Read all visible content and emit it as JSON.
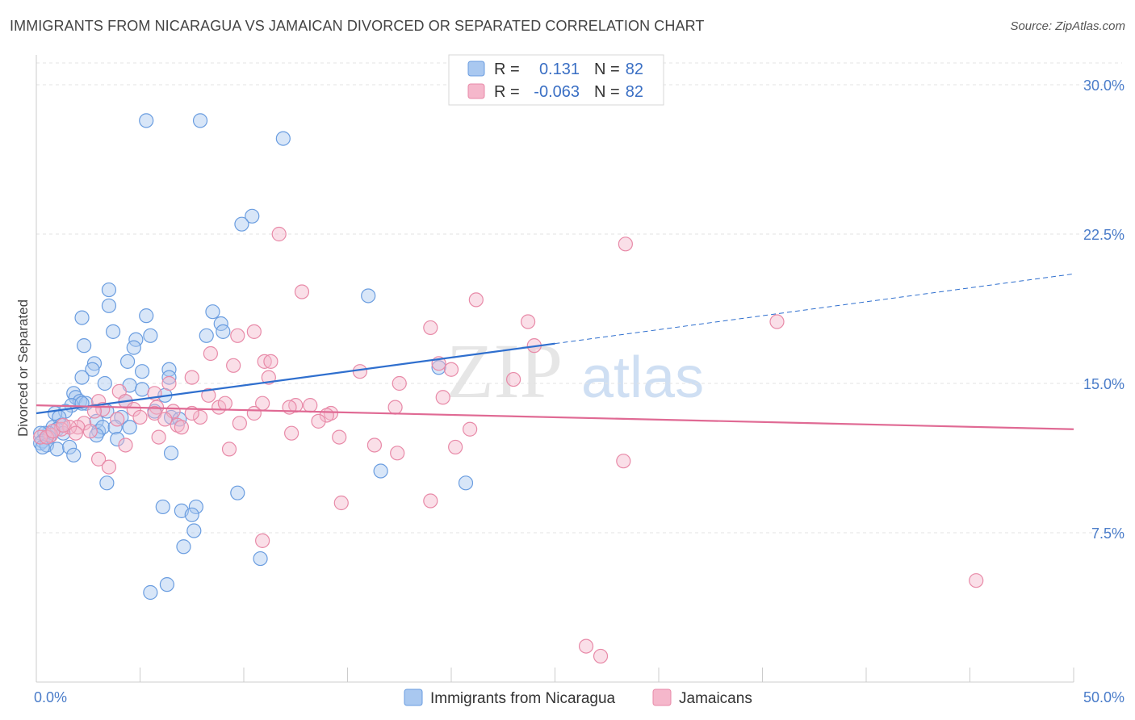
{
  "title": "IMMIGRANTS FROM NICARAGUA VS JAMAICAN DIVORCED OR SEPARATED CORRELATION CHART",
  "source": "Source: ZipAtlas.com",
  "watermark": {
    "zip": "ZIP",
    "atlas": "atlas"
  },
  "legend": {
    "rows": [
      {
        "r_label": "R =",
        "r_value": "0.131",
        "n_label": "N =",
        "n_value": "82",
        "color": "#a9c8f0"
      },
      {
        "r_label": "R =",
        "r_value": "-0.063",
        "n_label": "N =",
        "n_value": "82",
        "color": "#f5b7cb"
      }
    ]
  },
  "bottom_legend": [
    "Immigrants from Nicaragua",
    "Jamaicans"
  ],
  "chart_data": {
    "type": "scatter",
    "title": "IMMIGRANTS FROM NICARAGUA VS JAMAICAN DIVORCED OR SEPARATED CORRELATION CHART",
    "xlabel": "",
    "ylabel": "Divorced or Separated",
    "xlim": [
      0,
      50
    ],
    "ylim": [
      0,
      31.5
    ],
    "x_tick_labels": [
      "0.0%",
      "50.0%"
    ],
    "y_ticks": [
      7.5,
      15.0,
      22.5,
      30.0
    ],
    "y_tick_labels": [
      "7.5%",
      "15.0%",
      "22.5%",
      "30.0%"
    ],
    "grid": true,
    "legend_position": "top-center",
    "series": [
      {
        "name": "Immigrants from Nicaragua",
        "color": "#6a9de0",
        "fill": "#a9c8f0",
        "trend": {
          "x": [
            0,
            25
          ],
          "y": [
            13.5,
            17.0
          ],
          "dashed_to": [
            50,
            20.5
          ],
          "color": "#2f6fce"
        },
        "points": [
          [
            5.3,
            28.2
          ],
          [
            7.9,
            28.2
          ],
          [
            11.9,
            27.3
          ],
          [
            10.4,
            23.4
          ],
          [
            9.9,
            23.0
          ],
          [
            16.0,
            19.4
          ],
          [
            3.5,
            19.7
          ],
          [
            3.5,
            18.9
          ],
          [
            5.3,
            18.4
          ],
          [
            2.2,
            18.3
          ],
          [
            8.5,
            18.6
          ],
          [
            8.9,
            18.0
          ],
          [
            9.0,
            17.6
          ],
          [
            8.2,
            17.4
          ],
          [
            3.7,
            17.6
          ],
          [
            5.5,
            17.4
          ],
          [
            4.8,
            17.2
          ],
          [
            2.3,
            16.9
          ],
          [
            4.7,
            16.8
          ],
          [
            2.8,
            16.0
          ],
          [
            4.4,
            16.1
          ],
          [
            2.7,
            15.7
          ],
          [
            5.1,
            15.6
          ],
          [
            6.4,
            15.7
          ],
          [
            6.4,
            15.3
          ],
          [
            2.2,
            15.3
          ],
          [
            3.3,
            15.0
          ],
          [
            4.5,
            14.9
          ],
          [
            5.1,
            14.7
          ],
          [
            6.2,
            14.4
          ],
          [
            1.8,
            14.5
          ],
          [
            1.9,
            14.3
          ],
          [
            2.1,
            14.1
          ],
          [
            2.4,
            14.0
          ],
          [
            1.7,
            13.9
          ],
          [
            3.4,
            13.6
          ],
          [
            1.4,
            13.6
          ],
          [
            0.9,
            13.5
          ],
          [
            1.1,
            13.3
          ],
          [
            4.3,
            14.1
          ],
          [
            4.1,
            13.3
          ],
          [
            5.7,
            13.6
          ],
          [
            6.5,
            13.3
          ],
          [
            2.9,
            13.1
          ],
          [
            1.2,
            12.9
          ],
          [
            0.8,
            12.8
          ],
          [
            1.0,
            12.7
          ],
          [
            0.6,
            12.5
          ],
          [
            0.4,
            12.5
          ],
          [
            0.2,
            12.5
          ],
          [
            0.6,
            12.3
          ],
          [
            1.3,
            12.5
          ],
          [
            3.0,
            12.6
          ],
          [
            3.2,
            12.8
          ],
          [
            3.8,
            12.8
          ],
          [
            4.5,
            12.8
          ],
          [
            2.9,
            12.4
          ],
          [
            3.9,
            12.2
          ],
          [
            0.3,
            12.1
          ],
          [
            0.2,
            12.0
          ],
          [
            0.5,
            11.9
          ],
          [
            0.3,
            11.8
          ],
          [
            1.0,
            11.7
          ],
          [
            1.6,
            11.8
          ],
          [
            1.8,
            11.4
          ],
          [
            6.5,
            11.5
          ],
          [
            16.6,
            10.6
          ],
          [
            3.4,
            10.0
          ],
          [
            20.7,
            10.0
          ],
          [
            9.7,
            9.5
          ],
          [
            6.1,
            8.8
          ],
          [
            7.7,
            8.8
          ],
          [
            7.0,
            8.6
          ],
          [
            7.5,
            8.4
          ],
          [
            7.6,
            7.6
          ],
          [
            7.1,
            6.8
          ],
          [
            10.8,
            6.2
          ],
          [
            6.3,
            4.9
          ],
          [
            5.5,
            4.5
          ],
          [
            19.4,
            15.8
          ],
          [
            6.9,
            13.2
          ],
          [
            2.2,
            14.0
          ]
        ]
      },
      {
        "name": "Jamaicans",
        "color": "#e88aa8",
        "fill": "#f5b7cb",
        "trend": {
          "x": [
            0,
            50
          ],
          "y": [
            13.9,
            12.7
          ],
          "color": "#e06a94"
        },
        "points": [
          [
            11.7,
            22.5
          ],
          [
            28.4,
            22.0
          ],
          [
            12.8,
            19.6
          ],
          [
            21.2,
            19.2
          ],
          [
            35.7,
            18.1
          ],
          [
            23.7,
            18.1
          ],
          [
            19.0,
            17.8
          ],
          [
            10.5,
            17.6
          ],
          [
            9.7,
            17.4
          ],
          [
            24.0,
            16.9
          ],
          [
            8.4,
            16.5
          ],
          [
            11.0,
            16.1
          ],
          [
            11.3,
            16.1
          ],
          [
            9.5,
            15.9
          ],
          [
            19.4,
            16.0
          ],
          [
            20.0,
            15.7
          ],
          [
            15.6,
            15.6
          ],
          [
            7.5,
            15.3
          ],
          [
            11.2,
            15.3
          ],
          [
            23.0,
            15.2
          ],
          [
            6.4,
            15.0
          ],
          [
            17.5,
            15.0
          ],
          [
            4.0,
            14.6
          ],
          [
            5.7,
            14.5
          ],
          [
            8.3,
            14.4
          ],
          [
            19.6,
            14.3
          ],
          [
            3.0,
            14.1
          ],
          [
            4.3,
            14.1
          ],
          [
            10.9,
            14.0
          ],
          [
            12.5,
            13.9
          ],
          [
            13.2,
            13.9
          ],
          [
            12.2,
            13.8
          ],
          [
            8.8,
            13.8
          ],
          [
            17.3,
            13.8
          ],
          [
            5.8,
            13.8
          ],
          [
            4.7,
            13.7
          ],
          [
            3.2,
            13.7
          ],
          [
            2.8,
            13.6
          ],
          [
            10.5,
            13.5
          ],
          [
            14.2,
            13.5
          ],
          [
            5.7,
            13.5
          ],
          [
            6.6,
            13.6
          ],
          [
            7.9,
            13.3
          ],
          [
            7.5,
            13.5
          ],
          [
            14.0,
            13.4
          ],
          [
            5.0,
            13.3
          ],
          [
            6.2,
            13.2
          ],
          [
            9.8,
            13.0
          ],
          [
            2.3,
            13.0
          ],
          [
            2.0,
            12.8
          ],
          [
            1.6,
            12.8
          ],
          [
            6.8,
            12.9
          ],
          [
            1.2,
            12.7
          ],
          [
            20.9,
            12.7
          ],
          [
            2.6,
            12.6
          ],
          [
            1.9,
            12.5
          ],
          [
            12.3,
            12.5
          ],
          [
            0.7,
            12.4
          ],
          [
            14.6,
            12.3
          ],
          [
            5.9,
            12.3
          ],
          [
            0.2,
            12.3
          ],
          [
            0.5,
            12.3
          ],
          [
            4.3,
            11.9
          ],
          [
            16.3,
            11.9
          ],
          [
            20.2,
            11.8
          ],
          [
            9.3,
            11.7
          ],
          [
            17.4,
            11.5
          ],
          [
            3.0,
            11.2
          ],
          [
            28.3,
            11.1
          ],
          [
            3.5,
            10.8
          ],
          [
            19.0,
            9.1
          ],
          [
            14.7,
            9.0
          ],
          [
            10.9,
            7.1
          ],
          [
            45.3,
            5.1
          ],
          [
            26.5,
            1.8
          ],
          [
            27.2,
            1.3
          ],
          [
            0.8,
            12.6
          ],
          [
            3.9,
            13.2
          ],
          [
            1.3,
            12.9
          ],
          [
            7.0,
            12.8
          ],
          [
            9.1,
            14.0
          ],
          [
            13.6,
            13.1
          ]
        ]
      }
    ]
  }
}
